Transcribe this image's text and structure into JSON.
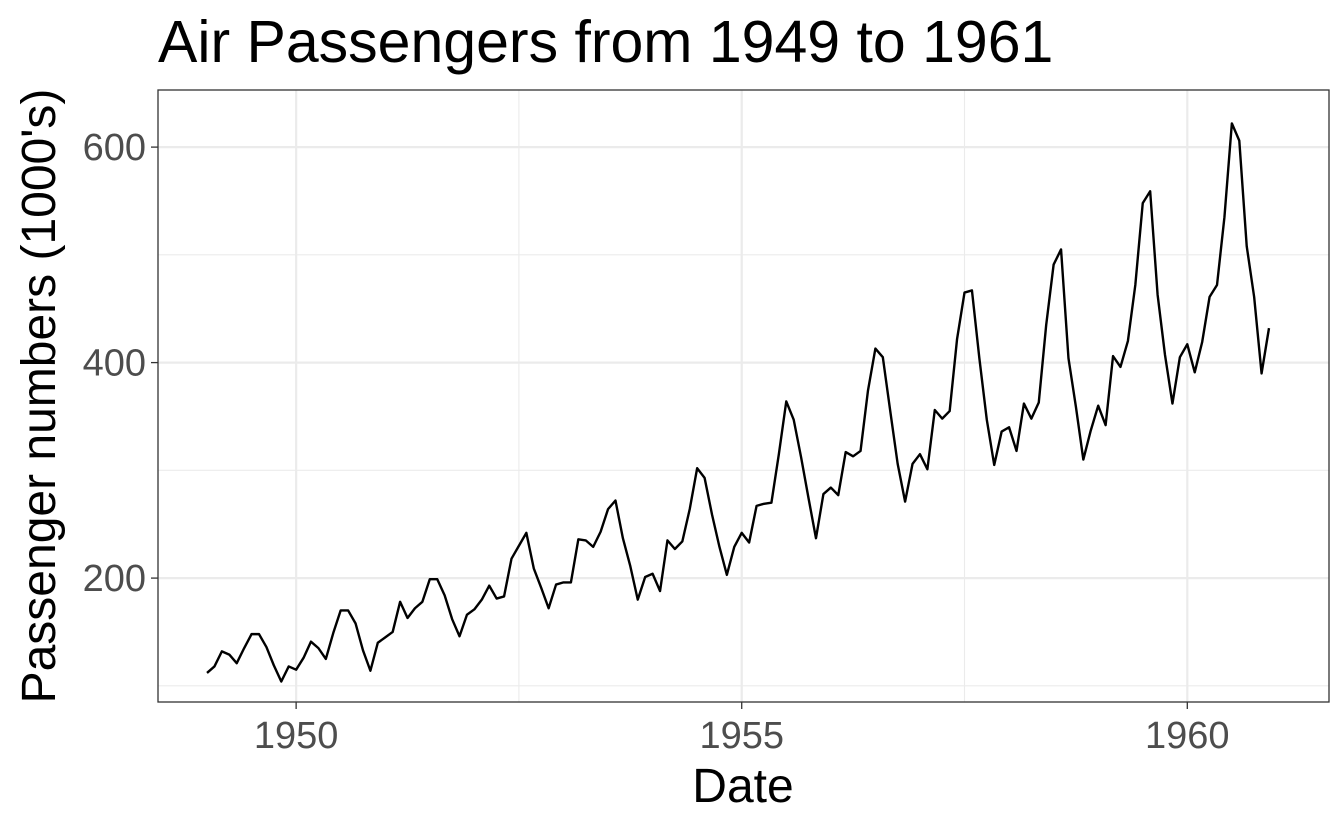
{
  "chart_data": {
    "type": "line",
    "title": "Air Passengers from 1949 to 1961",
    "xlabel": "Date",
    "ylabel": "Passenger numbers (1000's)",
    "xlim": [
      1948.45,
      1961.59
    ],
    "ylim": [
      85,
      653
    ],
    "x_ticks": [
      1950,
      1955,
      1960
    ],
    "x_tick_labels": [
      "1950",
      "1955",
      "1960"
    ],
    "y_ticks": [
      200,
      400,
      600
    ],
    "y_tick_labels": [
      "200",
      "400",
      "600"
    ],
    "grid": true,
    "legend": "none",
    "x_start": "1949-01",
    "x_step": "1 month",
    "series": [
      {
        "color": "#000000",
        "values": [
          112,
          118,
          132,
          129,
          121,
          135,
          148,
          148,
          136,
          119,
          104,
          118,
          115,
          126,
          141,
          135,
          125,
          149,
          170,
          170,
          158,
          133,
          114,
          140,
          145,
          150,
          178,
          163,
          172,
          178,
          199,
          199,
          184,
          162,
          146,
          166,
          171,
          180,
          193,
          181,
          183,
          218,
          230,
          242,
          209,
          191,
          172,
          194,
          196,
          196,
          236,
          235,
          229,
          243,
          264,
          272,
          237,
          211,
          180,
          201,
          204,
          188,
          235,
          227,
          234,
          264,
          302,
          293,
          259,
          229,
          203,
          229,
          242,
          233,
          267,
          269,
          270,
          315,
          364,
          347,
          312,
          274,
          237,
          278,
          284,
          277,
          317,
          313,
          318,
          374,
          413,
          405,
          355,
          306,
          271,
          306,
          315,
          301,
          356,
          348,
          355,
          422,
          465,
          467,
          404,
          347,
          305,
          336,
          340,
          318,
          362,
          348,
          363,
          435,
          491,
          505,
          404,
          359,
          310,
          337,
          360,
          342,
          406,
          396,
          420,
          472,
          548,
          559,
          463,
          407,
          362,
          405,
          417,
          391,
          419,
          461,
          472,
          535,
          622,
          606,
          508,
          461,
          390,
          432
        ]
      }
    ]
  }
}
